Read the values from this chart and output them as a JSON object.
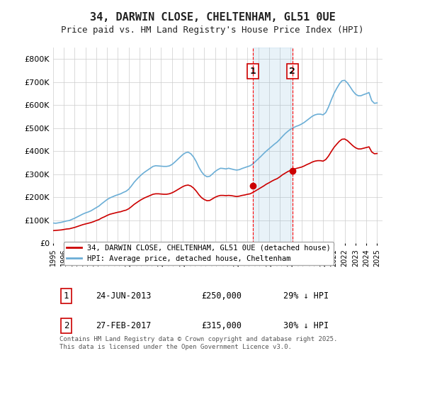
{
  "title": "34, DARWIN CLOSE, CHELTENHAM, GL51 0UE",
  "subtitle": "Price paid vs. HM Land Registry's House Price Index (HPI)",
  "bg_color": "#ffffff",
  "plot_bg_color": "#ffffff",
  "grid_color": "#cccccc",
  "hpi_color": "#6baed6",
  "price_color": "#cc0000",
  "ylim": [
    0,
    850000
  ],
  "yticks": [
    0,
    100000,
    200000,
    300000,
    400000,
    500000,
    600000,
    700000,
    800000
  ],
  "ytick_labels": [
    "£0",
    "£100K",
    "£200K",
    "£300K",
    "£400K",
    "£500K",
    "£600K",
    "£700K",
    "£800K"
  ],
  "xlabel_years": [
    "1995",
    "1996",
    "1997",
    "1998",
    "1999",
    "2000",
    "2001",
    "2002",
    "2003",
    "2004",
    "2005",
    "2006",
    "2007",
    "2008",
    "2009",
    "2010",
    "2011",
    "2012",
    "2013",
    "2014",
    "2015",
    "2016",
    "2017",
    "2018",
    "2019",
    "2020",
    "2021",
    "2022",
    "2023",
    "2024",
    "2025"
  ],
  "sale1_date": "24-JUN-2013",
  "sale1_price": 250000,
  "sale1_pct": "29%",
  "sale1_year": 2013.5,
  "sale2_date": "27-FEB-2017",
  "sale2_price": 315000,
  "sale2_pct": "30%",
  "sale2_year": 2017.15,
  "legend_label1": "34, DARWIN CLOSE, CHELTENHAM, GL51 0UE (detached house)",
  "legend_label2": "HPI: Average price, detached house, Cheltenham",
  "footer": "Contains HM Land Registry data © Crown copyright and database right 2025.\nThis data is licensed under the Open Government Licence v3.0.",
  "hpi_data_x": [
    1995.0,
    1995.25,
    1995.5,
    1995.75,
    1996.0,
    1996.25,
    1996.5,
    1996.75,
    1997.0,
    1997.25,
    1997.5,
    1997.75,
    1998.0,
    1998.25,
    1998.5,
    1998.75,
    1999.0,
    1999.25,
    1999.5,
    1999.75,
    2000.0,
    2000.25,
    2000.5,
    2000.75,
    2001.0,
    2001.25,
    2001.5,
    2001.75,
    2002.0,
    2002.25,
    2002.5,
    2002.75,
    2003.0,
    2003.25,
    2003.5,
    2003.75,
    2004.0,
    2004.25,
    2004.5,
    2004.75,
    2005.0,
    2005.25,
    2005.5,
    2005.75,
    2006.0,
    2006.25,
    2006.5,
    2006.75,
    2007.0,
    2007.25,
    2007.5,
    2007.75,
    2008.0,
    2008.25,
    2008.5,
    2008.75,
    2009.0,
    2009.25,
    2009.5,
    2009.75,
    2010.0,
    2010.25,
    2010.5,
    2010.75,
    2011.0,
    2011.25,
    2011.5,
    2011.75,
    2012.0,
    2012.25,
    2012.5,
    2012.75,
    2013.0,
    2013.25,
    2013.5,
    2013.75,
    2014.0,
    2014.25,
    2014.5,
    2014.75,
    2015.0,
    2015.25,
    2015.5,
    2015.75,
    2016.0,
    2016.25,
    2016.5,
    2016.75,
    2017.0,
    2017.25,
    2017.5,
    2017.75,
    2018.0,
    2018.25,
    2018.5,
    2018.75,
    2019.0,
    2019.25,
    2019.5,
    2019.75,
    2020.0,
    2020.25,
    2020.5,
    2020.75,
    2021.0,
    2021.25,
    2021.5,
    2021.75,
    2022.0,
    2022.25,
    2022.5,
    2022.75,
    2023.0,
    2023.25,
    2023.5,
    2023.75,
    2024.0,
    2024.25,
    2024.5,
    2024.75,
    2025.0
  ],
  "hpi_data_y": [
    88000,
    87000,
    89000,
    91000,
    94000,
    97000,
    99000,
    104000,
    109000,
    115000,
    121000,
    127000,
    132000,
    136000,
    141000,
    148000,
    155000,
    162000,
    172000,
    181000,
    190000,
    197000,
    202000,
    207000,
    211000,
    215000,
    221000,
    226000,
    235000,
    249000,
    265000,
    278000,
    290000,
    301000,
    310000,
    318000,
    326000,
    334000,
    337000,
    336000,
    335000,
    334000,
    334000,
    336000,
    342000,
    352000,
    363000,
    374000,
    385000,
    393000,
    396000,
    389000,
    375000,
    355000,
    330000,
    310000,
    296000,
    289000,
    291000,
    301000,
    312000,
    320000,
    326000,
    325000,
    323000,
    326000,
    323000,
    320000,
    318000,
    320000,
    325000,
    329000,
    333000,
    337000,
    345000,
    356000,
    367000,
    378000,
    390000,
    401000,
    411000,
    421000,
    431000,
    440000,
    452000,
    465000,
    477000,
    487000,
    496000,
    502000,
    508000,
    512000,
    518000,
    525000,
    534000,
    543000,
    552000,
    558000,
    561000,
    561000,
    558000,
    568000,
    592000,
    622000,
    650000,
    672000,
    692000,
    706000,
    708000,
    697000,
    680000,
    662000,
    648000,
    641000,
    641000,
    646000,
    650000,
    655000,
    620000,
    608000,
    610000
  ],
  "price_data_x": [
    1995.0,
    1995.25,
    1995.5,
    1995.75,
    1996.0,
    1996.25,
    1996.5,
    1996.75,
    1997.0,
    1997.25,
    1997.5,
    1997.75,
    1998.0,
    1998.25,
    1998.5,
    1998.75,
    1999.0,
    1999.25,
    1999.5,
    1999.75,
    2000.0,
    2000.25,
    2000.5,
    2000.75,
    2001.0,
    2001.25,
    2001.5,
    2001.75,
    2002.0,
    2002.25,
    2002.5,
    2002.75,
    2003.0,
    2003.25,
    2003.5,
    2003.75,
    2004.0,
    2004.25,
    2004.5,
    2004.75,
    2005.0,
    2005.25,
    2005.5,
    2005.75,
    2006.0,
    2006.25,
    2006.5,
    2006.75,
    2007.0,
    2007.25,
    2007.5,
    2007.75,
    2008.0,
    2008.25,
    2008.5,
    2008.75,
    2009.0,
    2009.25,
    2009.5,
    2009.75,
    2010.0,
    2010.25,
    2010.5,
    2010.75,
    2011.0,
    2011.25,
    2011.5,
    2011.75,
    2012.0,
    2012.25,
    2012.5,
    2012.75,
    2013.0,
    2013.25,
    2013.5,
    2013.75,
    2014.0,
    2014.25,
    2014.5,
    2014.75,
    2015.0,
    2015.25,
    2015.5,
    2015.75,
    2016.0,
    2016.25,
    2016.5,
    2016.75,
    2017.0,
    2017.25,
    2017.5,
    2017.75,
    2018.0,
    2018.25,
    2018.5,
    2018.75,
    2019.0,
    2019.25,
    2019.5,
    2019.75,
    2020.0,
    2020.25,
    2020.5,
    2020.75,
    2021.0,
    2021.25,
    2021.5,
    2021.75,
    2022.0,
    2022.25,
    2022.5,
    2022.75,
    2023.0,
    2023.25,
    2023.5,
    2023.75,
    2024.0,
    2024.25,
    2024.5,
    2024.75,
    2025.0
  ],
  "price_data_y": [
    55000,
    56000,
    57000,
    58000,
    60000,
    62000,
    63000,
    66000,
    69000,
    73000,
    77000,
    81000,
    84000,
    87000,
    90000,
    94000,
    99000,
    103000,
    110000,
    115000,
    121000,
    126000,
    129000,
    132000,
    135000,
    137000,
    141000,
    144000,
    150000,
    159000,
    169000,
    177000,
    185000,
    192000,
    198000,
    203000,
    208000,
    213000,
    215000,
    215000,
    214000,
    213000,
    213000,
    215000,
    219000,
    225000,
    232000,
    239000,
    246000,
    251000,
    253000,
    249000,
    240000,
    227000,
    211000,
    198000,
    190000,
    185000,
    186000,
    193000,
    200000,
    205000,
    208000,
    208000,
    207000,
    208000,
    207000,
    205000,
    203000,
    205000,
    208000,
    210000,
    213000,
    215000,
    221000,
    228000,
    235000,
    242000,
    249000,
    257000,
    263000,
    270000,
    276000,
    281000,
    289000,
    298000,
    305000,
    312000,
    317000,
    321000,
    325000,
    328000,
    331000,
    336000,
    342000,
    347000,
    353000,
    357000,
    359000,
    359000,
    357000,
    364000,
    379000,
    398000,
    416000,
    430000,
    443000,
    452000,
    453000,
    446000,
    435000,
    424000,
    415000,
    410000,
    410000,
    413000,
    416000,
    419000,
    397000,
    389000,
    390000
  ]
}
